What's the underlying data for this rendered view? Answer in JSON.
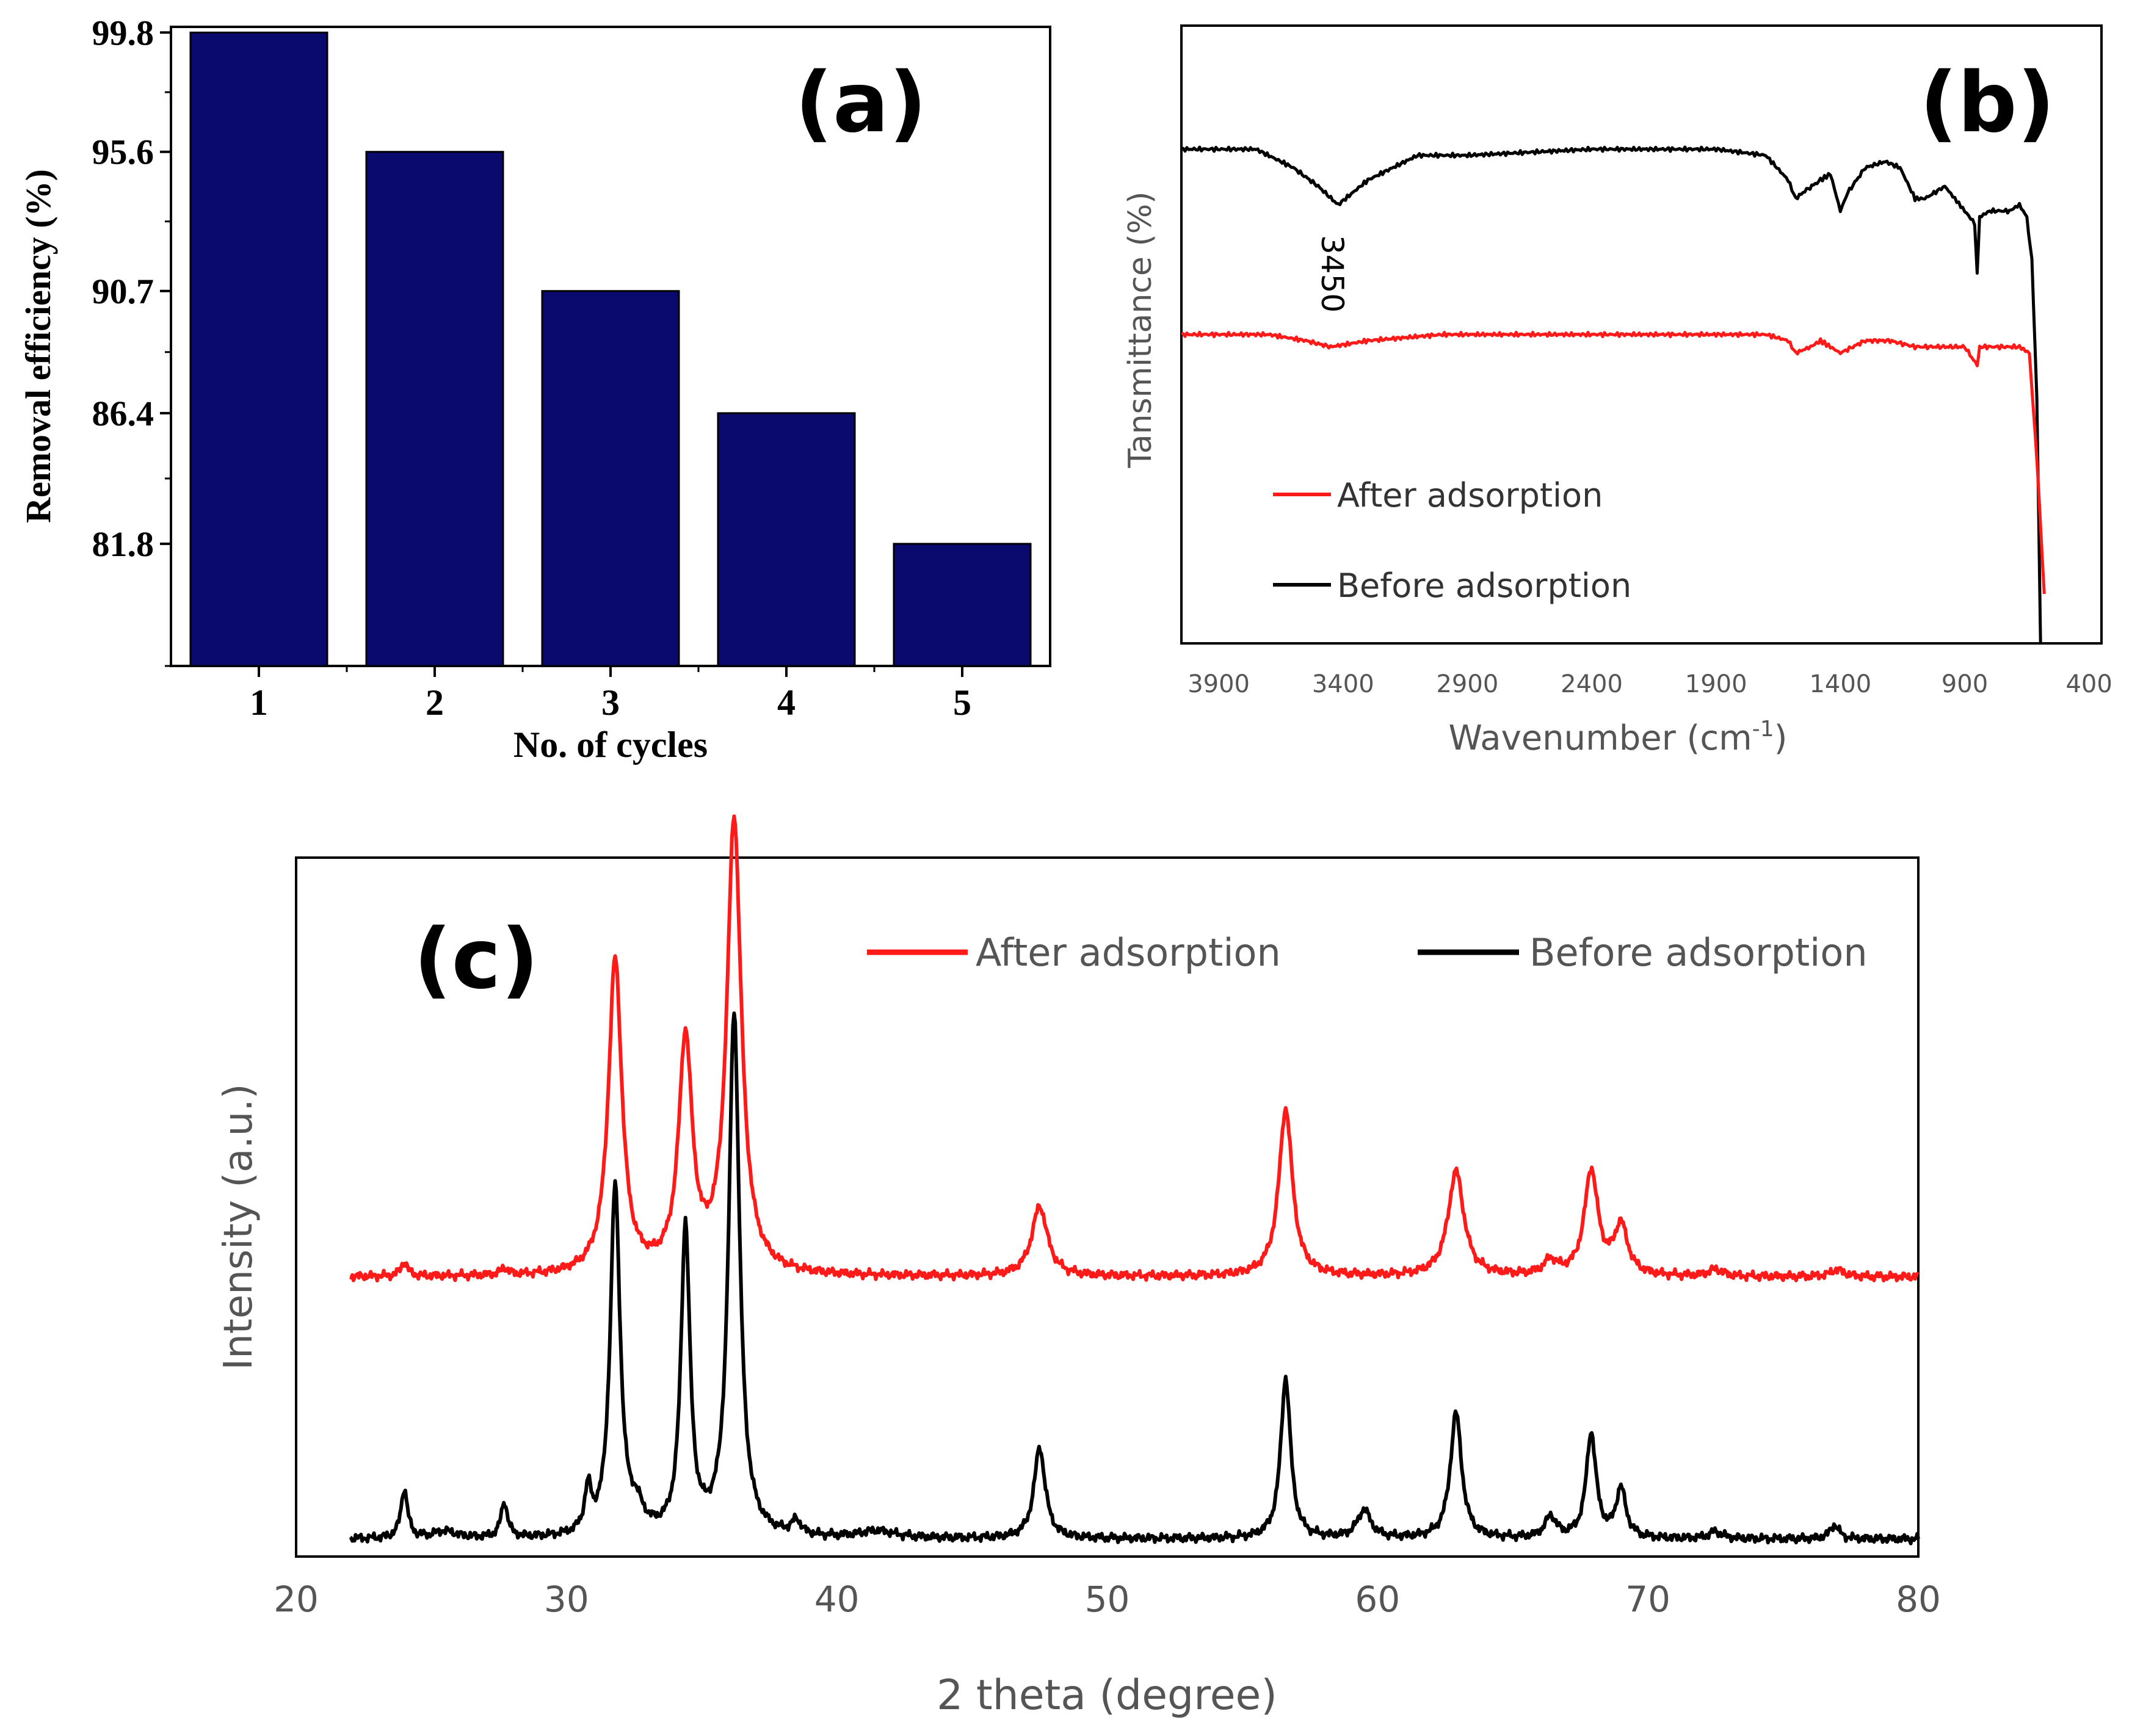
{
  "colors": {
    "bar": "#0a0a6e",
    "after": "#ff1a1a",
    "before": "#000000",
    "axis": "#000000",
    "tickText": "#555555"
  },
  "chart_data": [
    {
      "panel": "(a)",
      "type": "bar",
      "categories": [
        "1",
        "2",
        "3",
        "4",
        "5"
      ],
      "values": [
        99.8,
        95.6,
        90.7,
        86.4,
        81.8
      ],
      "ytick_labels": [
        "99.8",
        "95.6",
        "90.7",
        "86.4",
        "81.8"
      ],
      "xlabel": "No. of cycles",
      "ylabel": "Removal efficiency (%)",
      "ylim": [
        77.5,
        100
      ]
    },
    {
      "panel": "(b)",
      "type": "line",
      "xlabel": "Wavenumber (cm",
      "xlabel_sup": "-1",
      "xlabel_end": ")",
      "ylabel": "Tansmittance (%)",
      "xlim": [
        4050,
        350
      ],
      "xticks": [
        3900,
        3400,
        2900,
        2400,
        1900,
        1400,
        900,
        400
      ],
      "annotation": "3450",
      "legend": [
        "After adsorption",
        "Before adsorption"
      ],
      "series": [
        {
          "name": "Before adsorption",
          "points": [
            [
              4050,
              0.8
            ],
            [
              3750,
              0.8
            ],
            [
              3600,
              0.77
            ],
            [
              3500,
              0.74
            ],
            [
              3420,
              0.71
            ],
            [
              3300,
              0.75
            ],
            [
              3100,
              0.79
            ],
            [
              2900,
              0.79
            ],
            [
              2400,
              0.8
            ],
            [
              1900,
              0.8
            ],
            [
              1700,
              0.79
            ],
            [
              1610,
              0.75
            ],
            [
              1580,
              0.72
            ],
            [
              1550,
              0.73
            ],
            [
              1480,
              0.75
            ],
            [
              1440,
              0.76
            ],
            [
              1400,
              0.7
            ],
            [
              1370,
              0.73
            ],
            [
              1300,
              0.77
            ],
            [
              1220,
              0.78
            ],
            [
              1160,
              0.77
            ],
            [
              1100,
              0.72
            ],
            [
              1060,
              0.72
            ],
            [
              980,
              0.74
            ],
            [
              940,
              0.72
            ],
            [
              900,
              0.7
            ],
            [
              860,
              0.68
            ],
            [
              850,
              0.6
            ],
            [
              840,
              0.69
            ],
            [
              800,
              0.7
            ],
            [
              720,
              0.7
            ],
            [
              680,
              0.71
            ],
            [
              650,
              0.69
            ],
            [
              630,
              0.62
            ],
            [
              610,
              0.4
            ],
            [
              595,
              0.0
            ]
          ]
        },
        {
          "name": "After adsorption",
          "points": [
            [
              4050,
              0.5
            ],
            [
              3700,
              0.5
            ],
            [
              3550,
              0.49
            ],
            [
              3450,
              0.48
            ],
            [
              3300,
              0.49
            ],
            [
              3000,
              0.5
            ],
            [
              2400,
              0.5
            ],
            [
              1900,
              0.5
            ],
            [
              1700,
              0.5
            ],
            [
              1610,
              0.49
            ],
            [
              1580,
              0.47
            ],
            [
              1520,
              0.48
            ],
            [
              1480,
              0.49
            ],
            [
              1440,
              0.48
            ],
            [
              1400,
              0.47
            ],
            [
              1300,
              0.49
            ],
            [
              1200,
              0.49
            ],
            [
              1100,
              0.48
            ],
            [
              1000,
              0.48
            ],
            [
              900,
              0.48
            ],
            [
              850,
              0.45
            ],
            [
              840,
              0.48
            ],
            [
              760,
              0.48
            ],
            [
              680,
              0.48
            ],
            [
              640,
              0.47
            ],
            [
              610,
              0.3
            ],
            [
              580,
              0.08
            ]
          ]
        }
      ]
    },
    {
      "panel": "(c)",
      "type": "line",
      "xlabel": "2 theta (degree)",
      "ylabel": "Intensity  (a.u.)",
      "xlim": [
        20,
        80
      ],
      "xticks": [
        20,
        30,
        40,
        50,
        60,
        70,
        80
      ],
      "legend": [
        "After adsorption",
        "Before adsorption"
      ],
      "series": [
        {
          "name": "After adsorption",
          "baseline": 0.4,
          "peaks": [
            [
              24.0,
              0.02,
              0.15
            ],
            [
              27.7,
              0.01,
              0.15
            ],
            [
              31.8,
              0.45,
              0.3
            ],
            [
              34.4,
              0.33,
              0.3
            ],
            [
              36.2,
              0.65,
              0.32
            ],
            [
              47.5,
              0.1,
              0.35
            ],
            [
              56.6,
              0.24,
              0.3
            ],
            [
              62.9,
              0.15,
              0.35
            ],
            [
              66.4,
              0.02,
              0.3
            ],
            [
              67.9,
              0.15,
              0.3
            ],
            [
              69.0,
              0.07,
              0.3
            ],
            [
              72.5,
              0.01,
              0.3
            ],
            [
              77.0,
              0.01,
              0.3
            ]
          ]
        },
        {
          "name": "Before adsorption",
          "baseline": 0.025,
          "peaks": [
            [
              24.0,
              0.07,
              0.15
            ],
            [
              25.5,
              0.01,
              0.5
            ],
            [
              27.7,
              0.05,
              0.15
            ],
            [
              30.8,
              0.06,
              0.15
            ],
            [
              31.8,
              0.5,
              0.22
            ],
            [
              32.6,
              0.03,
              0.3
            ],
            [
              34.4,
              0.44,
              0.2
            ],
            [
              36.2,
              0.75,
              0.24
            ],
            [
              38.5,
              0.02,
              0.2
            ],
            [
              41.5,
              0.01,
              0.8
            ],
            [
              47.5,
              0.13,
              0.25
            ],
            [
              56.6,
              0.23,
              0.22
            ],
            [
              59.5,
              0.04,
              0.3
            ],
            [
              62.9,
              0.18,
              0.25
            ],
            [
              66.4,
              0.03,
              0.25
            ],
            [
              67.9,
              0.15,
              0.22
            ],
            [
              69.0,
              0.07,
              0.22
            ],
            [
              72.5,
              0.01,
              0.3
            ],
            [
              76.9,
              0.02,
              0.2
            ]
          ]
        }
      ]
    }
  ]
}
